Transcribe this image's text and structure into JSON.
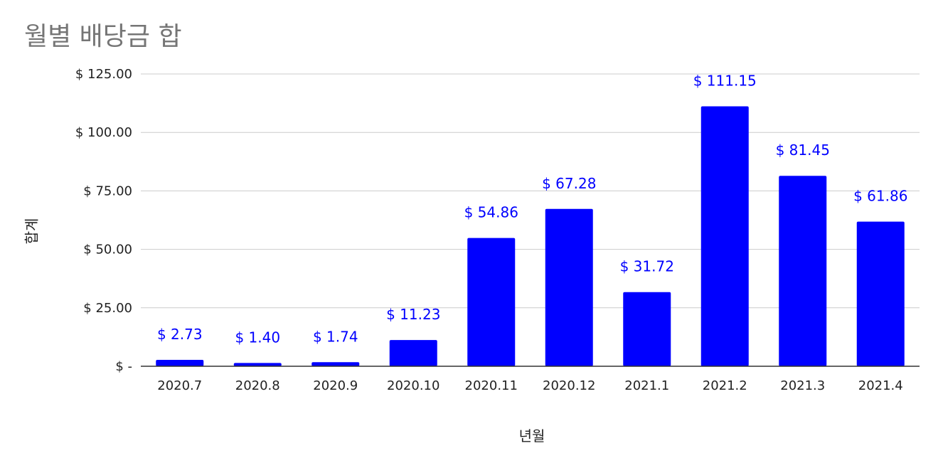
{
  "chart_data": {
    "type": "bar",
    "title": "월별 배당금 합",
    "xlabel": "년월",
    "ylabel": "합계",
    "categories": [
      "2020.7",
      "2020.8",
      "2020.9",
      "2020.10",
      "2020.11",
      "2020.12",
      "2021.1",
      "2021.2",
      "2021.3",
      "2021.4"
    ],
    "values": [
      2.73,
      1.4,
      1.74,
      11.23,
      54.86,
      67.28,
      31.72,
      111.15,
      81.45,
      61.86
    ],
    "data_labels": [
      "$ 2.73",
      "$ 1.40",
      "$ 1.74",
      "$ 11.23",
      "$ 54.86",
      "$ 67.28",
      "$ 31.72",
      "$ 111.15",
      "$ 81.45",
      "$ 61.86"
    ],
    "ylim": [
      0,
      125
    ],
    "yticks": [
      0,
      25,
      50,
      75,
      100,
      125
    ],
    "ytick_labels": [
      "$ -",
      "$ 25.00",
      "$ 50.00",
      "$ 75.00",
      "$ 100.00",
      "$ 125.00"
    ],
    "grid": true,
    "legend": "none",
    "colors": {
      "bar": "#0000ff",
      "data_label": "#0000ff",
      "gridline": "#cccccc",
      "axis": "#333333",
      "title": "#757575"
    }
  }
}
